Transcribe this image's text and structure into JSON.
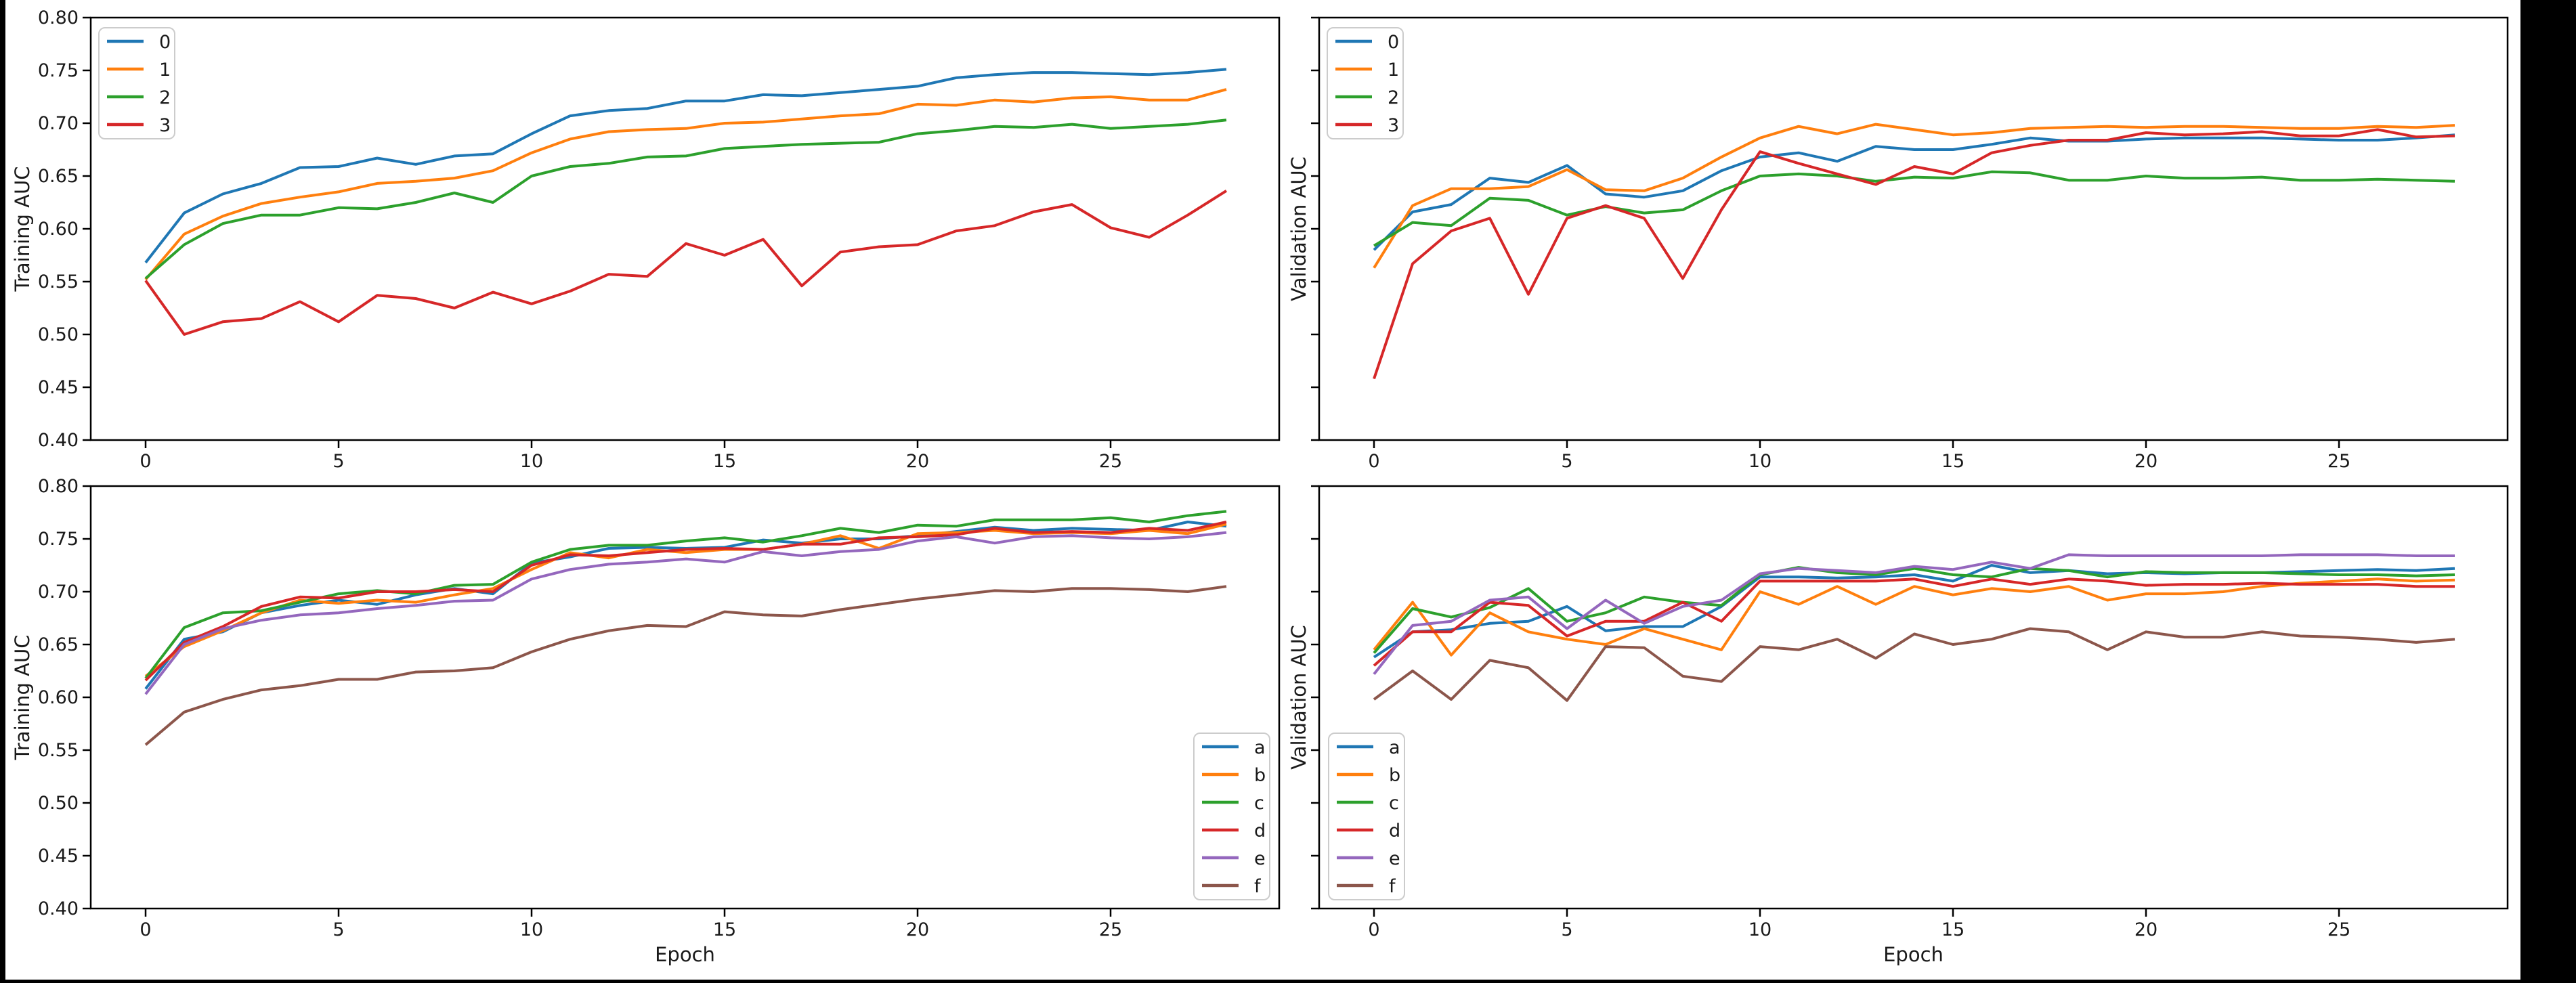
{
  "figure": {
    "outer_background": "#000000",
    "face_color": "#ffffff",
    "spine_color": "#000000",
    "text_color": "#1a1a1a",
    "legend_border_color": "#cccccc"
  },
  "chart_data": [
    {
      "id": "top-left",
      "type": "line",
      "title": "",
      "xlabel": "",
      "ylabel": "Training AUC",
      "ylim": [
        0.4,
        0.8
      ],
      "yticks": [
        0.4,
        0.45,
        0.5,
        0.55,
        0.6,
        0.65,
        0.7,
        0.75,
        0.8
      ],
      "ytick_labels": [
        "0.40",
        "0.45",
        "0.50",
        "0.55",
        "0.60",
        "0.65",
        "0.70",
        "0.75",
        "0.80"
      ],
      "show_ytick_labels": true,
      "xticks": [
        0,
        5,
        10,
        15,
        20,
        25
      ],
      "grid": false,
      "legend_position": "upper-left",
      "x": [
        0,
        1,
        2,
        3,
        4,
        5,
        6,
        7,
        8,
        9,
        10,
        11,
        12,
        13,
        14,
        15,
        16,
        17,
        18,
        19,
        20,
        21,
        22,
        23,
        24,
        25,
        26,
        27,
        28
      ],
      "series": [
        {
          "name": "0",
          "color": "#1f77b4",
          "values": [
            0.568,
            0.615,
            0.633,
            0.643,
            0.658,
            0.659,
            0.667,
            0.661,
            0.669,
            0.671,
            0.69,
            0.707,
            0.712,
            0.714,
            0.721,
            0.721,
            0.727,
            0.726,
            0.729,
            0.732,
            0.735,
            0.743,
            0.746,
            0.748,
            0.748,
            0.747,
            0.746,
            0.748,
            0.751
          ]
        },
        {
          "name": "1",
          "color": "#ff7f0e",
          "values": [
            0.552,
            0.595,
            0.612,
            0.624,
            0.63,
            0.635,
            0.643,
            0.645,
            0.648,
            0.655,
            0.672,
            0.685,
            0.692,
            0.694,
            0.695,
            0.7,
            0.701,
            0.704,
            0.707,
            0.709,
            0.718,
            0.717,
            0.722,
            0.72,
            0.724,
            0.725,
            0.722,
            0.722,
            0.732
          ]
        },
        {
          "name": "2",
          "color": "#2ca02c",
          "values": [
            0.553,
            0.585,
            0.605,
            0.613,
            0.613,
            0.62,
            0.619,
            0.625,
            0.634,
            0.625,
            0.65,
            0.659,
            0.662,
            0.668,
            0.669,
            0.676,
            0.678,
            0.68,
            0.681,
            0.682,
            0.69,
            0.693,
            0.697,
            0.696,
            0.699,
            0.695,
            0.697,
            0.699,
            0.703
          ]
        },
        {
          "name": "3",
          "color": "#d62728",
          "values": [
            0.551,
            0.5,
            0.512,
            0.515,
            0.531,
            0.512,
            0.537,
            0.534,
            0.525,
            0.54,
            0.529,
            0.541,
            0.557,
            0.555,
            0.586,
            0.575,
            0.59,
            0.546,
            0.578,
            0.583,
            0.585,
            0.598,
            0.603,
            0.616,
            0.623,
            0.601,
            0.592,
            0.613,
            0.636
          ]
        }
      ]
    },
    {
      "id": "top-right",
      "type": "line",
      "title": "",
      "xlabel": "",
      "ylabel": "Validation AUC",
      "ylim": [
        0.4,
        0.8
      ],
      "yticks": [
        0.4,
        0.45,
        0.5,
        0.55,
        0.6,
        0.65,
        0.7,
        0.75,
        0.8
      ],
      "ytick_labels": [],
      "show_ytick_labels": false,
      "xticks": [
        0,
        5,
        10,
        15,
        20,
        25
      ],
      "grid": false,
      "legend_position": "upper-left",
      "x": [
        0,
        1,
        2,
        3,
        4,
        5,
        6,
        7,
        8,
        9,
        10,
        11,
        12,
        13,
        14,
        15,
        16,
        17,
        18,
        19,
        20,
        21,
        22,
        23,
        24,
        25,
        26,
        27,
        28
      ],
      "series": [
        {
          "name": "0",
          "color": "#1f77b4",
          "values": [
            0.58,
            0.616,
            0.623,
            0.648,
            0.644,
            0.66,
            0.633,
            0.63,
            0.636,
            0.655,
            0.668,
            0.672,
            0.664,
            0.678,
            0.675,
            0.675,
            0.68,
            0.686,
            0.683,
            0.683,
            0.685,
            0.686,
            0.686,
            0.686,
            0.685,
            0.684,
            0.684,
            0.686,
            0.689
          ]
        },
        {
          "name": "1",
          "color": "#ff7f0e",
          "values": [
            0.563,
            0.622,
            0.638,
            0.638,
            0.64,
            0.656,
            0.637,
            0.636,
            0.648,
            0.668,
            0.686,
            0.697,
            0.69,
            0.699,
            0.694,
            0.689,
            0.691,
            0.695,
            0.696,
            0.697,
            0.696,
            0.697,
            0.697,
            0.696,
            0.695,
            0.695,
            0.697,
            0.696,
            0.698
          ]
        },
        {
          "name": "2",
          "color": "#2ca02c",
          "values": [
            0.584,
            0.606,
            0.603,
            0.629,
            0.627,
            0.613,
            0.621,
            0.615,
            0.618,
            0.636,
            0.65,
            0.652,
            0.65,
            0.645,
            0.649,
            0.648,
            0.654,
            0.653,
            0.646,
            0.646,
            0.65,
            0.648,
            0.648,
            0.649,
            0.646,
            0.646,
            0.647,
            0.646,
            0.645
          ]
        },
        {
          "name": "3",
          "color": "#d62728",
          "values": [
            0.458,
            0.567,
            0.598,
            0.61,
            0.538,
            0.61,
            0.622,
            0.61,
            0.553,
            0.618,
            0.673,
            0.662,
            0.652,
            0.642,
            0.659,
            0.652,
            0.672,
            0.679,
            0.684,
            0.684,
            0.691,
            0.689,
            0.69,
            0.692,
            0.688,
            0.688,
            0.694,
            0.687,
            0.688
          ]
        }
      ]
    },
    {
      "id": "bottom-left",
      "type": "line",
      "title": "",
      "xlabel": "Epoch",
      "ylabel": "Training AUC",
      "ylim": [
        0.4,
        0.8
      ],
      "yticks": [
        0.4,
        0.45,
        0.5,
        0.55,
        0.6,
        0.65,
        0.7,
        0.75,
        0.8
      ],
      "ytick_labels": [
        "0.40",
        "0.45",
        "0.50",
        "0.55",
        "0.60",
        "0.65",
        "0.70",
        "0.75",
        "0.80"
      ],
      "show_ytick_labels": true,
      "xticks": [
        0,
        5,
        10,
        15,
        20,
        25
      ],
      "grid": false,
      "legend_position": "lower-right",
      "x": [
        0,
        1,
        2,
        3,
        4,
        5,
        6,
        7,
        8,
        9,
        10,
        11,
        12,
        13,
        14,
        15,
        16,
        17,
        18,
        19,
        20,
        21,
        22,
        23,
        24,
        25,
        26,
        27,
        28
      ],
      "series": [
        {
          "name": "a",
          "color": "#1f77b4",
          "values": [
            0.608,
            0.655,
            0.662,
            0.68,
            0.687,
            0.692,
            0.688,
            0.697,
            0.703,
            0.698,
            0.727,
            0.733,
            0.741,
            0.742,
            0.741,
            0.742,
            0.749,
            0.746,
            0.75,
            0.75,
            0.753,
            0.757,
            0.761,
            0.758,
            0.76,
            0.759,
            0.758,
            0.766,
            0.762
          ]
        },
        {
          "name": "b",
          "color": "#ff7f0e",
          "values": [
            0.62,
            0.648,
            0.663,
            0.68,
            0.692,
            0.689,
            0.692,
            0.69,
            0.697,
            0.703,
            0.721,
            0.737,
            0.732,
            0.74,
            0.737,
            0.74,
            0.74,
            0.745,
            0.753,
            0.741,
            0.755,
            0.756,
            0.758,
            0.755,
            0.756,
            0.755,
            0.758,
            0.755,
            0.764
          ]
        },
        {
          "name": "c",
          "color": "#2ca02c",
          "values": [
            0.618,
            0.666,
            0.68,
            0.682,
            0.69,
            0.698,
            0.701,
            0.698,
            0.706,
            0.707,
            0.728,
            0.74,
            0.744,
            0.744,
            0.748,
            0.751,
            0.747,
            0.753,
            0.76,
            0.756,
            0.763,
            0.762,
            0.768,
            0.768,
            0.768,
            0.77,
            0.766,
            0.772,
            0.776
          ]
        },
        {
          "name": "d",
          "color": "#d62728",
          "values": [
            0.616,
            0.652,
            0.667,
            0.686,
            0.695,
            0.694,
            0.7,
            0.7,
            0.702,
            0.7,
            0.725,
            0.735,
            0.734,
            0.737,
            0.74,
            0.741,
            0.74,
            0.745,
            0.745,
            0.751,
            0.752,
            0.754,
            0.76,
            0.756,
            0.757,
            0.756,
            0.76,
            0.758,
            0.766
          ]
        },
        {
          "name": "e",
          "color": "#9467bd",
          "values": [
            0.603,
            0.65,
            0.665,
            0.673,
            0.678,
            0.68,
            0.684,
            0.687,
            0.691,
            0.692,
            0.712,
            0.721,
            0.726,
            0.728,
            0.731,
            0.728,
            0.738,
            0.734,
            0.738,
            0.74,
            0.748,
            0.752,
            0.746,
            0.752,
            0.753,
            0.751,
            0.75,
            0.752,
            0.756
          ]
        },
        {
          "name": "f",
          "color": "#8c564b",
          "values": [
            0.555,
            0.586,
            0.598,
            0.607,
            0.611,
            0.617,
            0.617,
            0.624,
            0.625,
            0.628,
            0.643,
            0.655,
            0.663,
            0.668,
            0.667,
            0.681,
            0.678,
            0.677,
            0.683,
            0.688,
            0.693,
            0.697,
            0.701,
            0.7,
            0.703,
            0.703,
            0.702,
            0.7,
            0.705
          ]
        }
      ]
    },
    {
      "id": "bottom-right",
      "type": "line",
      "title": "",
      "xlabel": "Epoch",
      "ylabel": "Validation AUC",
      "ylim": [
        0.4,
        0.8
      ],
      "yticks": [
        0.4,
        0.45,
        0.5,
        0.55,
        0.6,
        0.65,
        0.7,
        0.75,
        0.8
      ],
      "ytick_labels": [],
      "show_ytick_labels": false,
      "xticks": [
        0,
        5,
        10,
        15,
        20,
        25
      ],
      "grid": false,
      "legend_position": "lower-left",
      "x": [
        0,
        1,
        2,
        3,
        4,
        5,
        6,
        7,
        8,
        9,
        10,
        11,
        12,
        13,
        14,
        15,
        16,
        17,
        18,
        19,
        20,
        21,
        22,
        23,
        24,
        25,
        26,
        27,
        28
      ],
      "series": [
        {
          "name": "a",
          "color": "#1f77b4",
          "values": [
            0.638,
            0.662,
            0.664,
            0.67,
            0.672,
            0.686,
            0.663,
            0.667,
            0.667,
            0.686,
            0.714,
            0.714,
            0.713,
            0.714,
            0.716,
            0.71,
            0.725,
            0.718,
            0.72,
            0.717,
            0.718,
            0.717,
            0.718,
            0.718,
            0.719,
            0.72,
            0.721,
            0.72,
            0.722
          ]
        },
        {
          "name": "b",
          "color": "#ff7f0e",
          "values": [
            0.645,
            0.69,
            0.64,
            0.68,
            0.662,
            0.655,
            0.65,
            0.665,
            0.655,
            0.645,
            0.7,
            0.688,
            0.705,
            0.688,
            0.705,
            0.697,
            0.703,
            0.7,
            0.705,
            0.692,
            0.698,
            0.698,
            0.7,
            0.705,
            0.708,
            0.71,
            0.712,
            0.71,
            0.711
          ]
        },
        {
          "name": "c",
          "color": "#2ca02c",
          "values": [
            0.642,
            0.684,
            0.676,
            0.685,
            0.703,
            0.672,
            0.68,
            0.695,
            0.69,
            0.687,
            0.716,
            0.723,
            0.718,
            0.716,
            0.722,
            0.716,
            0.714,
            0.722,
            0.72,
            0.714,
            0.719,
            0.718,
            0.718,
            0.718,
            0.717,
            0.716,
            0.716,
            0.715,
            0.716
          ]
        },
        {
          "name": "d",
          "color": "#d62728",
          "values": [
            0.63,
            0.662,
            0.662,
            0.69,
            0.687,
            0.658,
            0.672,
            0.672,
            0.69,
            0.672,
            0.71,
            0.71,
            0.71,
            0.71,
            0.712,
            0.705,
            0.712,
            0.707,
            0.712,
            0.71,
            0.706,
            0.707,
            0.707,
            0.708,
            0.707,
            0.707,
            0.707,
            0.705,
            0.705
          ]
        },
        {
          "name": "e",
          "color": "#9467bd",
          "values": [
            0.622,
            0.668,
            0.672,
            0.692,
            0.695,
            0.665,
            0.692,
            0.67,
            0.686,
            0.692,
            0.717,
            0.722,
            0.72,
            0.718,
            0.724,
            0.721,
            0.728,
            0.722,
            0.735,
            0.734,
            0.734,
            0.734,
            0.734,
            0.734,
            0.735,
            0.735,
            0.735,
            0.734,
            0.734
          ]
        },
        {
          "name": "f",
          "color": "#8c564b",
          "values": [
            0.598,
            0.625,
            0.598,
            0.635,
            0.628,
            0.597,
            0.648,
            0.647,
            0.62,
            0.615,
            0.648,
            0.645,
            0.655,
            0.637,
            0.66,
            0.65,
            0.655,
            0.665,
            0.662,
            0.645,
            0.662,
            0.657,
            0.657,
            0.662,
            0.658,
            0.657,
            0.655,
            0.652,
            0.655
          ]
        }
      ]
    }
  ]
}
